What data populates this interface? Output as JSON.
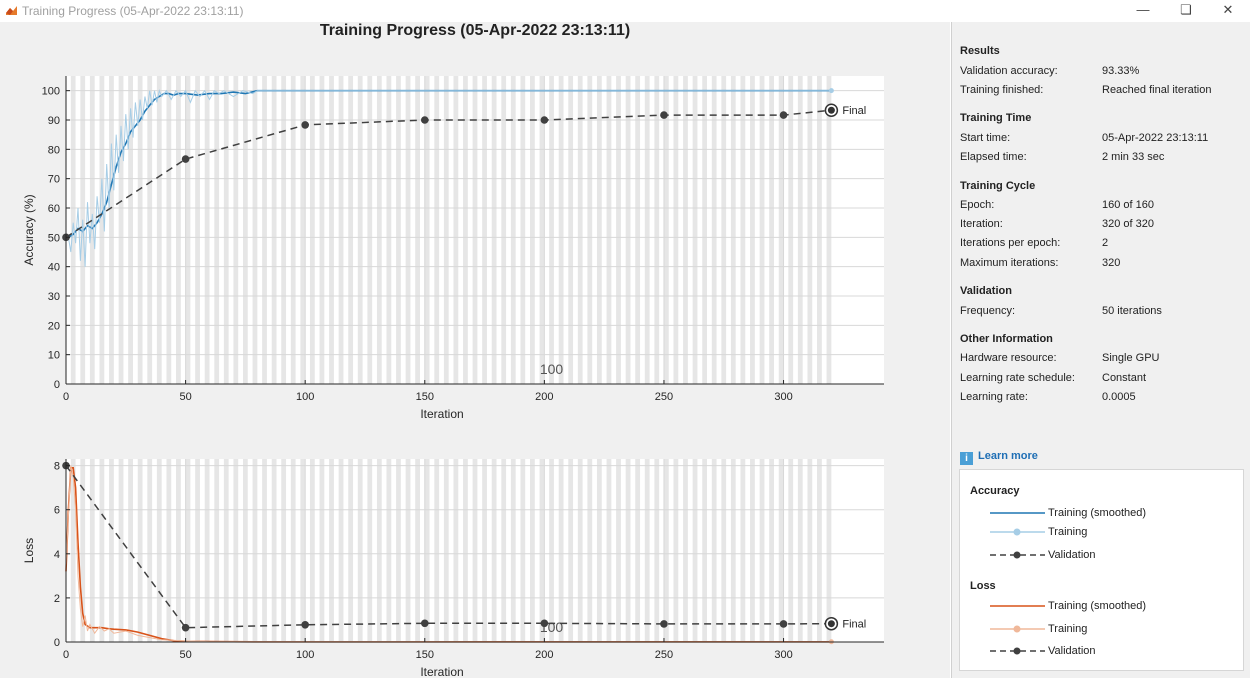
{
  "window": {
    "title": "Training Progress (05-Apr-2022 23:13:11)",
    "minimize_icon": "minimize-icon",
    "restore_icon": "restore-icon",
    "close_icon": "close-icon"
  },
  "plot_title": "Training Progress (05-Apr-2022 23:13:11)",
  "chart_data": [
    {
      "type": "line",
      "xlabel": "Iteration",
      "ylabel": "Accuracy (%)",
      "xlim": [
        0,
        342
      ],
      "ylim": [
        0,
        105
      ],
      "xticks": [
        0,
        50,
        100,
        150,
        200,
        250,
        300
      ],
      "yticks": [
        0,
        10,
        20,
        30,
        40,
        50,
        60,
        70,
        80,
        90,
        100
      ],
      "overlay_label": "100",
      "final_label": "Final",
      "epoch_bands": true,
      "series": [
        {
          "name": "Training (smoothed)",
          "color": "#1f77b4",
          "points": [
            [
              1,
              50
            ],
            [
              3,
              51
            ],
            [
              5,
              53
            ],
            [
              7,
              52
            ],
            [
              9,
              54
            ],
            [
              11,
              53
            ],
            [
              13,
              55
            ],
            [
              15,
              58
            ],
            [
              17,
              62
            ],
            [
              19,
              68
            ],
            [
              21,
              74
            ],
            [
              23,
              79
            ],
            [
              25,
              82
            ],
            [
              27,
              86
            ],
            [
              29,
              88
            ],
            [
              31,
              90
            ],
            [
              33,
              93
            ],
            [
              35,
              95
            ],
            [
              37,
              97
            ],
            [
              39,
              98
            ],
            [
              41,
              99
            ],
            [
              43,
              99
            ],
            [
              45,
              98.5
            ],
            [
              47,
              99
            ],
            [
              50,
              99
            ],
            [
              55,
              98.5
            ],
            [
              60,
              99
            ],
            [
              65,
              99
            ],
            [
              70,
              99.5
            ],
            [
              75,
              99
            ],
            [
              80,
              100
            ],
            [
              320,
              100
            ]
          ]
        },
        {
          "name": "Training",
          "color": "#a6cde6",
          "points": [
            [
              1,
              50
            ],
            [
              2,
              45
            ],
            [
              3,
              55
            ],
            [
              4,
              48
            ],
            [
              5,
              60
            ],
            [
              6,
              42
            ],
            [
              7,
              56
            ],
            [
              8,
              40
            ],
            [
              9,
              62
            ],
            [
              10,
              48
            ],
            [
              11,
              58
            ],
            [
              12,
              46
            ],
            [
              13,
              64
            ],
            [
              14,
              55
            ],
            [
              15,
              70
            ],
            [
              16,
              52
            ],
            [
              17,
              75
            ],
            [
              18,
              60
            ],
            [
              19,
              82
            ],
            [
              20,
              66
            ],
            [
              21,
              85
            ],
            [
              22,
              72
            ],
            [
              23,
              88
            ],
            [
              24,
              76
            ],
            [
              25,
              92
            ],
            [
              26,
              80
            ],
            [
              27,
              94
            ],
            [
              28,
              84
            ],
            [
              29,
              96
            ],
            [
              30,
              88
            ],
            [
              31,
              97
            ],
            [
              32,
              90
            ],
            [
              33,
              98
            ],
            [
              34,
              94
            ],
            [
              35,
              100
            ],
            [
              36,
              95
            ],
            [
              37,
              100
            ],
            [
              38,
              96
            ],
            [
              39,
              100
            ],
            [
              40,
              98
            ],
            [
              42,
              100
            ],
            [
              44,
              97
            ],
            [
              46,
              100
            ],
            [
              48,
              98
            ],
            [
              50,
              100
            ],
            [
              52,
              96
            ],
            [
              54,
              100
            ],
            [
              56,
              98
            ],
            [
              58,
              100
            ],
            [
              60,
              97
            ],
            [
              62,
              100
            ],
            [
              64,
              99
            ],
            [
              66,
              100
            ],
            [
              70,
              98
            ],
            [
              74,
              100
            ],
            [
              78,
              99
            ],
            [
              80,
              100
            ],
            [
              320,
              100
            ]
          ]
        },
        {
          "name": "Validation",
          "color": "#404040",
          "points": [
            [
              0,
              50
            ],
            [
              50,
              76.67
            ],
            [
              100,
              88.33
            ],
            [
              150,
              90
            ],
            [
              200,
              90
            ],
            [
              250,
              91.67
            ],
            [
              300,
              91.67
            ],
            [
              320,
              93.33
            ]
          ]
        }
      ]
    },
    {
      "type": "line",
      "xlabel": "Iteration",
      "ylabel": "Loss",
      "xlim": [
        0,
        342
      ],
      "ylim": [
        0,
        8.3
      ],
      "xticks": [
        0,
        50,
        100,
        150,
        200,
        250,
        300
      ],
      "yticks": [
        0,
        2,
        4,
        6,
        8
      ],
      "overlay_label": "100",
      "final_label": "Final",
      "epoch_bands": true,
      "series": [
        {
          "name": "Training (smoothed)",
          "color": "#d95319",
          "points": [
            [
              0,
              3.2
            ],
            [
              1,
              6
            ],
            [
              2,
              7.9
            ],
            [
              3,
              7.9
            ],
            [
              4,
              7.0
            ],
            [
              5,
              4.5
            ],
            [
              6,
              2.5
            ],
            [
              7,
              1.3
            ],
            [
              8,
              0.8
            ],
            [
              10,
              0.65
            ],
            [
              15,
              0.65
            ],
            [
              18,
              0.6
            ],
            [
              20,
              0.58
            ],
            [
              25,
              0.55
            ],
            [
              30,
              0.45
            ],
            [
              35,
              0.3
            ],
            [
              40,
              0.15
            ],
            [
              45,
              0.06
            ],
            [
              50,
              0.03
            ],
            [
              60,
              0.02
            ],
            [
              80,
              0.01
            ],
            [
              320,
              0.01
            ]
          ]
        },
        {
          "name": "Training",
          "color": "#f0b89a",
          "points": [
            [
              0,
              3.5
            ],
            [
              2,
              8.0
            ],
            [
              3,
              7.5
            ],
            [
              4,
              6
            ],
            [
              5,
              3
            ],
            [
              6,
              1.5
            ],
            [
              7,
              0.7
            ],
            [
              8,
              1.2
            ],
            [
              9,
              0.5
            ],
            [
              10,
              0.8
            ],
            [
              12,
              0.4
            ],
            [
              14,
              0.7
            ],
            [
              16,
              0.5
            ],
            [
              18,
              0.6
            ],
            [
              20,
              0.4
            ],
            [
              25,
              0.5
            ],
            [
              30,
              0.3
            ],
            [
              35,
              0.2
            ],
            [
              40,
              0.1
            ],
            [
              50,
              0.05
            ],
            [
              60,
              0.02
            ],
            [
              320,
              0.01
            ]
          ]
        },
        {
          "name": "Validation",
          "color": "#404040",
          "points": [
            [
              0,
              8.0
            ],
            [
              50,
              0.65
            ],
            [
              100,
              0.78
            ],
            [
              150,
              0.85
            ],
            [
              200,
              0.85
            ],
            [
              250,
              0.82
            ],
            [
              300,
              0.82
            ],
            [
              320,
              0.83
            ]
          ]
        }
      ]
    }
  ],
  "results": {
    "header": "Results",
    "rows": [
      {
        "label": "Validation accuracy:",
        "value": "93.33%"
      },
      {
        "label": "Training finished:",
        "value": "Reached final iteration"
      }
    ]
  },
  "training_time": {
    "header": "Training Time",
    "rows": [
      {
        "label": "Start time:",
        "value": "05-Apr-2022 23:13:11"
      },
      {
        "label": "Elapsed time:",
        "value": "2 min 33 sec"
      }
    ]
  },
  "training_cycle": {
    "header": "Training Cycle",
    "rows": [
      {
        "label": "Epoch:",
        "value": "160 of 160"
      },
      {
        "label": "Iteration:",
        "value": "320 of 320"
      },
      {
        "label": "Iterations per epoch:",
        "value": "2"
      },
      {
        "label": "Maximum iterations:",
        "value": "320"
      }
    ]
  },
  "validation": {
    "header": "Validation",
    "rows": [
      {
        "label": "Frequency:",
        "value": "50 iterations"
      }
    ]
  },
  "other_info": {
    "header": "Other Information",
    "rows": [
      {
        "label": "Hardware resource:",
        "value": "Single GPU"
      },
      {
        "label": "Learning rate schedule:",
        "value": "Constant"
      },
      {
        "label": "Learning rate:",
        "value": "0.0005"
      }
    ]
  },
  "learn_more": "Learn more",
  "legend": {
    "accuracy_header": "Accuracy",
    "loss_header": "Loss",
    "accuracy_items": [
      {
        "label": "Training (smoothed)",
        "color": "#1f77b4",
        "style": "solid"
      },
      {
        "label": "Training",
        "color": "#a6cde6",
        "style": "solid-marker"
      },
      {
        "label": "Validation",
        "color": "#404040",
        "style": "dashed-marker"
      }
    ],
    "loss_items": [
      {
        "label": "Training (smoothed)",
        "color": "#d95319",
        "style": "solid"
      },
      {
        "label": "Training",
        "color": "#f0b89a",
        "style": "solid-marker"
      },
      {
        "label": "Validation",
        "color": "#404040",
        "style": "dashed-marker"
      }
    ]
  }
}
